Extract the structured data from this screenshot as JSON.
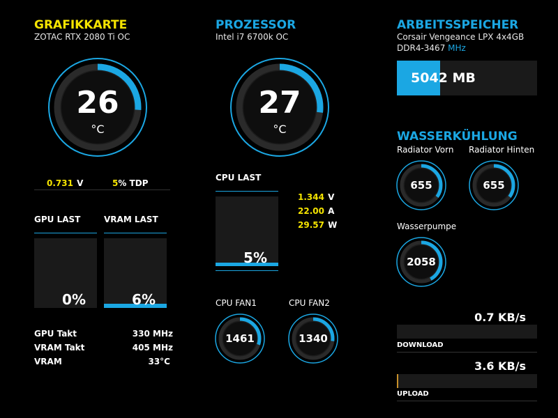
{
  "gpu": {
    "title": "GRAFIKKARTE",
    "model": "ZOTAC RTX 2080 Ti OC",
    "temp": "26",
    "temp_unit": "°C",
    "temp_fill": 0.26,
    "voltage": "0.731",
    "voltage_unit": "V",
    "tdp": "5",
    "tdp_unit": "% TDP",
    "load_label": "GPU LAST",
    "load_value": "0%",
    "load_fill": 0.0,
    "vram_label": "VRAM LAST",
    "vram_value": "6%",
    "vram_fill": 0.06,
    "clock_label": "GPU Takt",
    "clock_value": "330 MHz",
    "vram_clock_label": "VRAM Takt",
    "vram_clock_value": "405 MHz",
    "vram_temp_label": "VRAM",
    "vram_temp_value": "33°C"
  },
  "cpu": {
    "title": "PROZESSOR",
    "model": "Intel i7 6700k OC",
    "temp": "27",
    "temp_unit": "°C",
    "temp_fill": 0.27,
    "load_label": "CPU LAST",
    "load_value": "5%",
    "load_fill": 0.05,
    "voltage": "1.344",
    "voltage_unit": "V",
    "current": "22.00",
    "current_unit": "A",
    "power": "29.57",
    "power_unit": "W",
    "fan1_label": "CPU FAN1",
    "fan1_value": "1461",
    "fan1_fill": 0.3,
    "fan2_label": "CPU FAN2",
    "fan2_value": "1340",
    "fan2_fill": 0.27
  },
  "ram": {
    "title": "ARBEITSSPEICHER",
    "model": "Corsair Vengeance LPX 4x4GB",
    "type": "DDR4-3467",
    "type_unit": "MHz",
    "used": "5042 MB",
    "used_fill": 0.31
  },
  "water": {
    "title": "WASSERKÜHLUNG",
    "rad_front_label": "Radiator Vorn",
    "rad_front_value": "655",
    "rad_front_fill": 0.35,
    "rad_rear_label": "Radiator Hinten",
    "rad_rear_value": "655",
    "rad_rear_fill": 0.35,
    "pump_label": "Wasserpumpe",
    "pump_value": "2058",
    "pump_fill": 0.42
  },
  "net": {
    "download_value": "0.7 KB/s",
    "download_label": "DOWNLOAD",
    "download_fill": 0.0,
    "upload_value": "3.6 KB/s",
    "upload_label": "UPLOAD",
    "upload_fill": 0.01
  },
  "colors": {
    "accent": "#1ba7e3",
    "highlight": "#f5e400",
    "panel": "#1a1a1a"
  }
}
